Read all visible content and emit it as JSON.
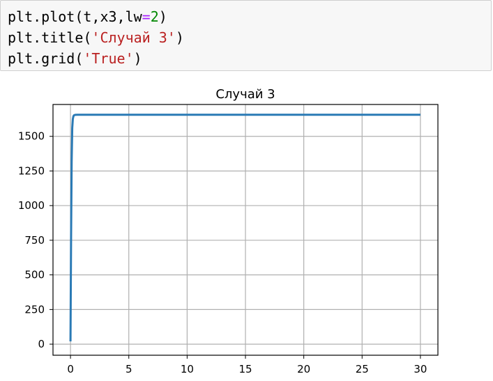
{
  "cell": {
    "lines": [
      [
        {
          "t": "plt.plot(t,x3,lw",
          "c": "plain"
        },
        {
          "t": "=",
          "c": "eq"
        },
        {
          "t": "2",
          "c": "num"
        },
        {
          "t": ")",
          "c": "plain"
        }
      ],
      [
        {
          "t": "plt.title(",
          "c": "plain"
        },
        {
          "t": "'Случай 3'",
          "c": "str"
        },
        {
          "t": ")",
          "c": "plain"
        }
      ],
      [
        {
          "t": "plt.grid(",
          "c": "plain"
        },
        {
          "t": "'True'",
          "c": "str"
        },
        {
          "t": ")",
          "c": "plain"
        }
      ]
    ]
  },
  "colors": {
    "line": "#2a7ab5",
    "grid": "#b0b0b0",
    "axes": "#000000",
    "cell_bg": "#f7f7f7",
    "code_string": "#ba2121",
    "code_number": "#008800"
  },
  "chart_data": {
    "type": "line",
    "title": "Случай 3",
    "xlabel": "",
    "ylabel": "",
    "grid": true,
    "xlim": [
      -1.5,
      31.5
    ],
    "ylim": [
      -80,
      1730
    ],
    "xticks": [
      0,
      5,
      10,
      15,
      20,
      25,
      30
    ],
    "yticks": [
      0,
      250,
      500,
      750,
      1000,
      1250,
      1500
    ],
    "series": [
      {
        "x": [
          0,
          0.05,
          0.1,
          0.15,
          0.2,
          0.25,
          0.3,
          0.4,
          0.6,
          1,
          5,
          10,
          15,
          20,
          25,
          30
        ],
        "y": [
          20,
          780,
          1320,
          1560,
          1625,
          1645,
          1652,
          1655,
          1656,
          1656,
          1656,
          1656,
          1656,
          1656,
          1656,
          1656
        ]
      }
    ]
  }
}
